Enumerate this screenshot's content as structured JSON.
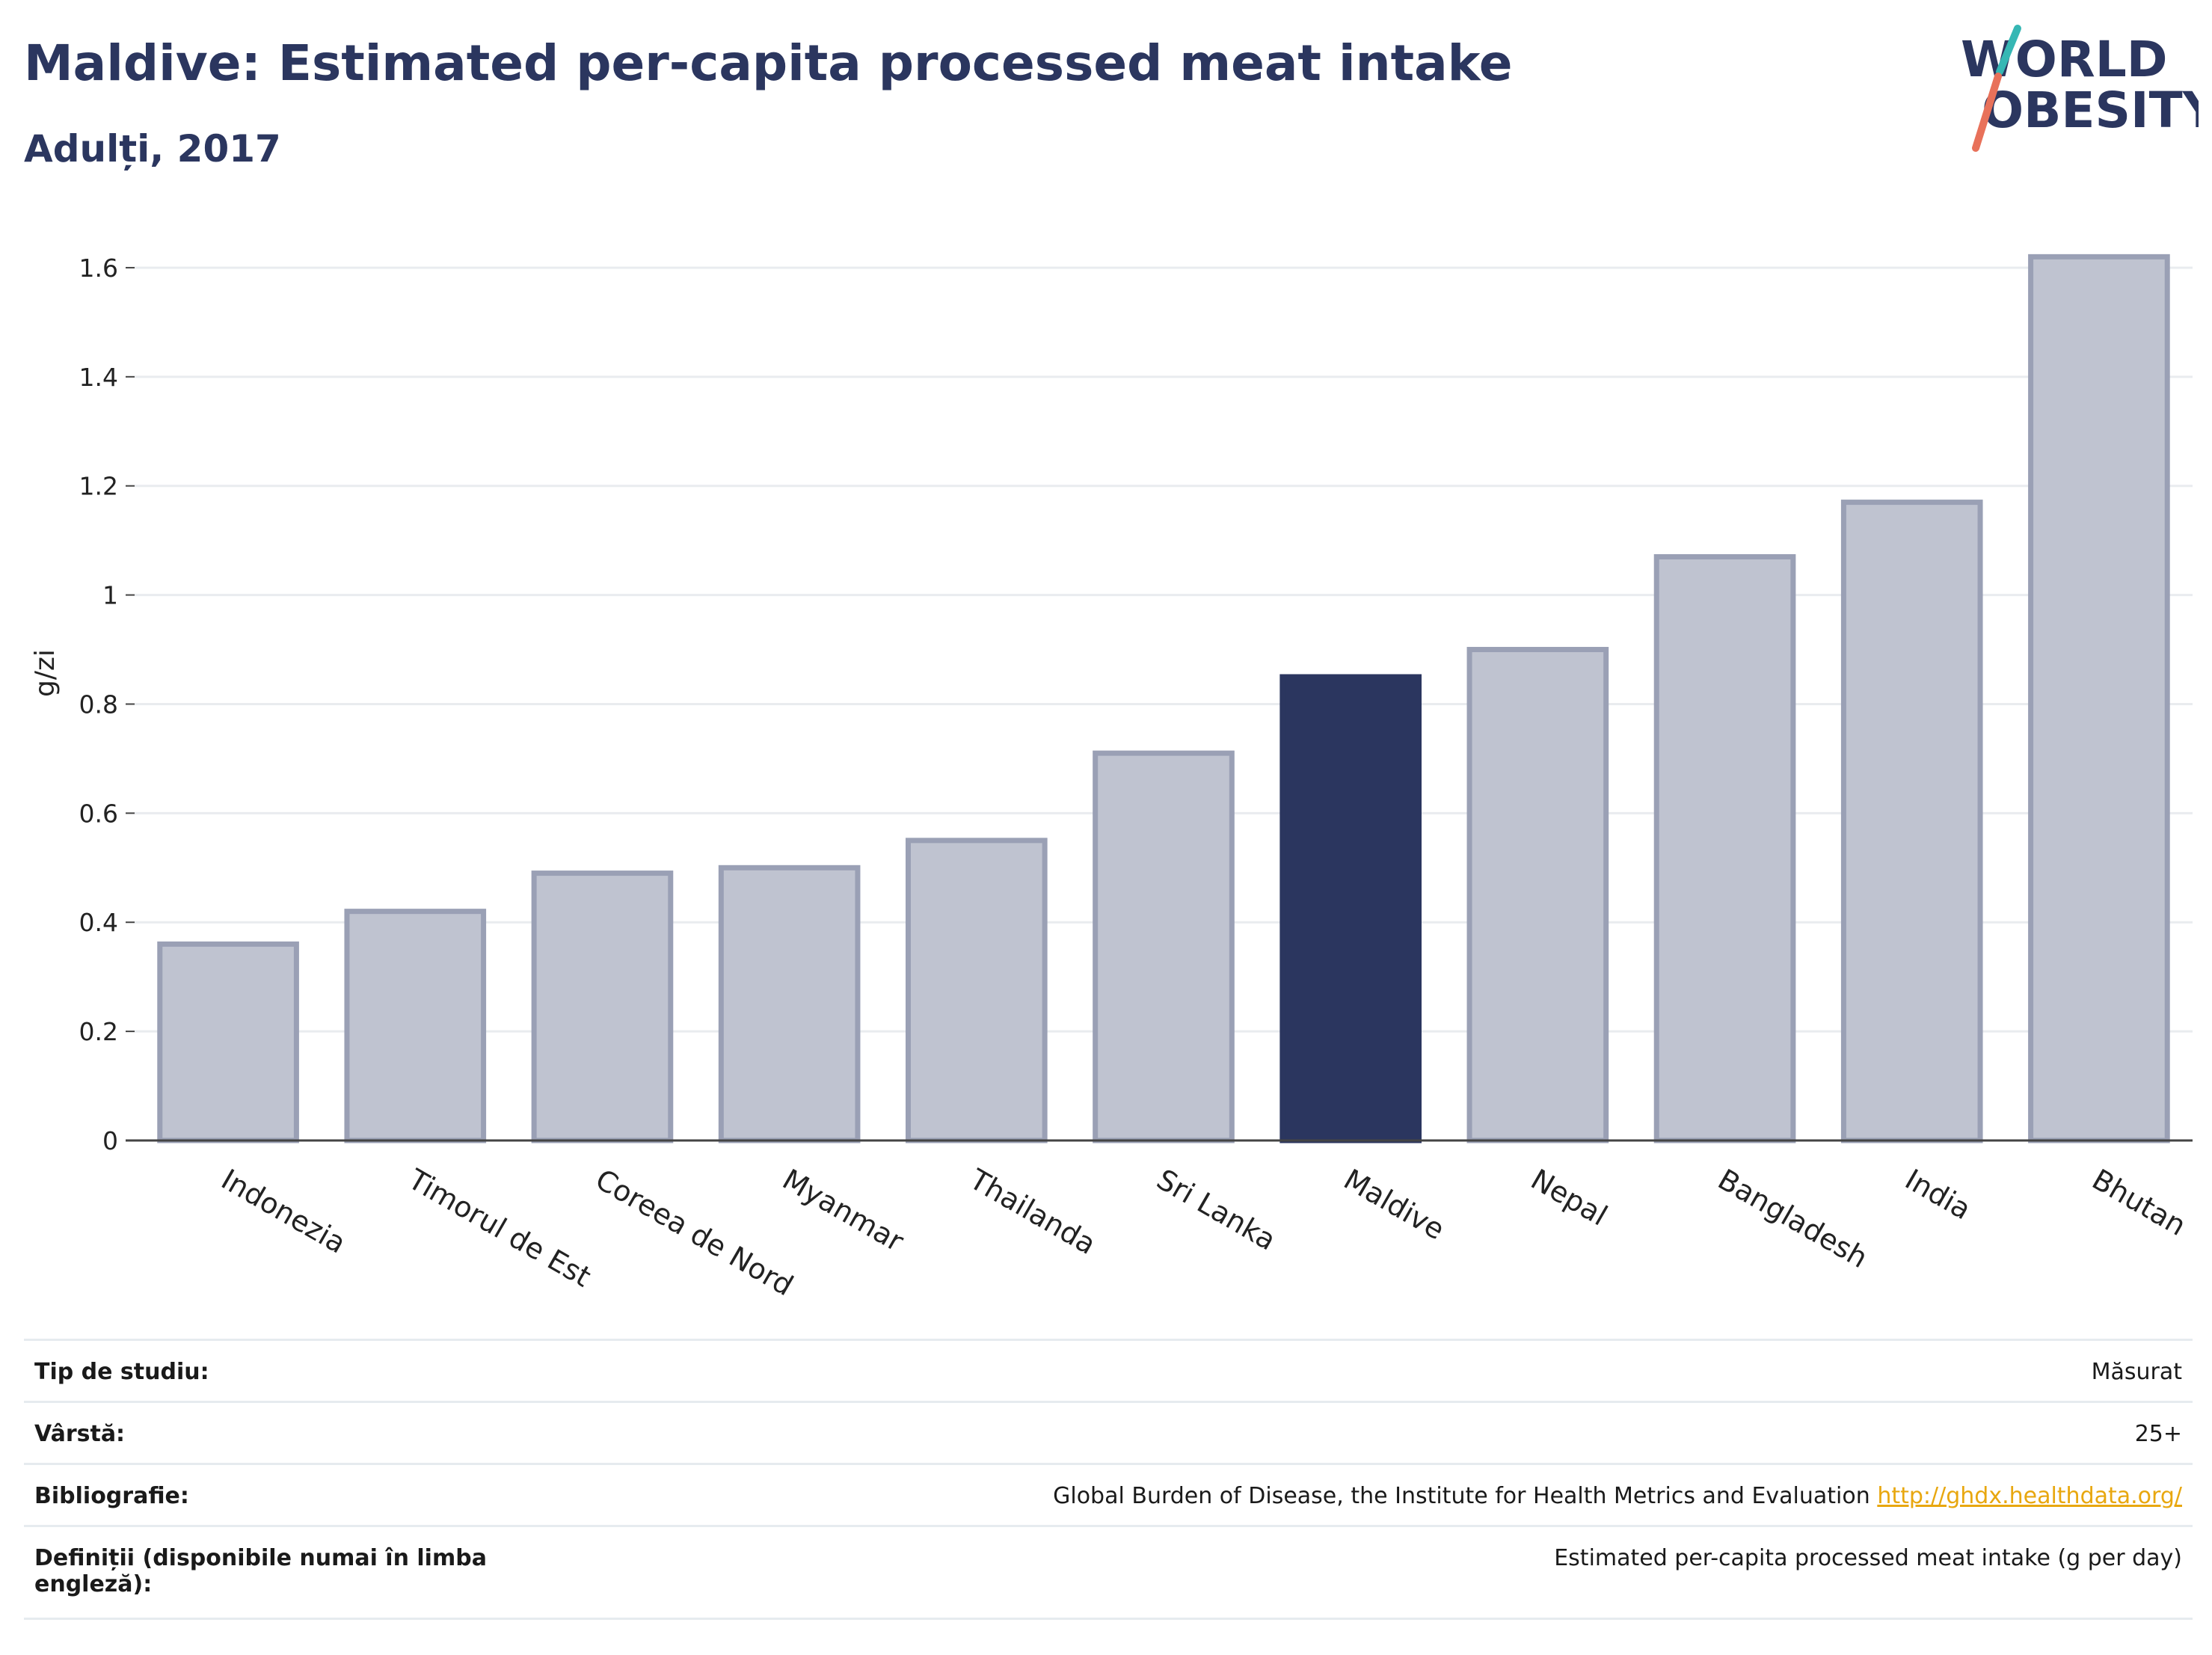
{
  "header": {
    "title": "Maldive: Estimated per-capita processed meat intake",
    "subtitle": "Adulți, 2017"
  },
  "logo": {
    "line1": "WORLD",
    "line2": "OBESITY"
  },
  "colors": {
    "highlight": "#2b365f",
    "bar_fill": "#bfc3d0",
    "bar_stroke": "#9aa0b5",
    "logo_teal": "#36b7b4",
    "logo_coral": "#e8715a",
    "link": "#e8a70f"
  },
  "chart_data": {
    "type": "bar",
    "title": "Maldive: Estimated per-capita processed meat intake",
    "subtitle": "Adulți, 2017",
    "ylabel": "g/zi",
    "xlabel": "",
    "categories": [
      "Indonezia",
      "Timorul de Est",
      "Coreea de Nord",
      "Myanmar",
      "Thailanda",
      "Sri Lanka",
      "Maldive",
      "Nepal",
      "Bangladesh",
      "India",
      "Bhutan"
    ],
    "values": [
      0.36,
      0.42,
      0.49,
      0.5,
      0.55,
      0.71,
      0.85,
      0.9,
      1.07,
      1.17,
      1.62
    ],
    "highlight": "Maldive",
    "ylim": [
      0,
      1.7
    ],
    "yticks": [
      0,
      0.2,
      0.4,
      0.6,
      0.8,
      1,
      1.2,
      1.4,
      1.6
    ],
    "ytick_labels": [
      "0",
      "0.2",
      "0.4",
      "0.6",
      "0.8",
      "1",
      "1.2",
      "1.4",
      "1.6"
    ],
    "grid": true,
    "legend": "none"
  },
  "info": {
    "rows": [
      {
        "key": "Tip de studiu:",
        "value": "Măsurat"
      },
      {
        "key": "Vârstă:",
        "value": "25+"
      },
      {
        "key": "Bibliografie:",
        "value": "Global Burden of Disease, the Institute for Health Metrics and Evaluation",
        "link": "http://ghdx.healthdata.org/"
      },
      {
        "key": "Definiții (disponibile numai în limba engleză):",
        "value": "Estimated per-capita processed meat intake (g per day)"
      }
    ]
  }
}
